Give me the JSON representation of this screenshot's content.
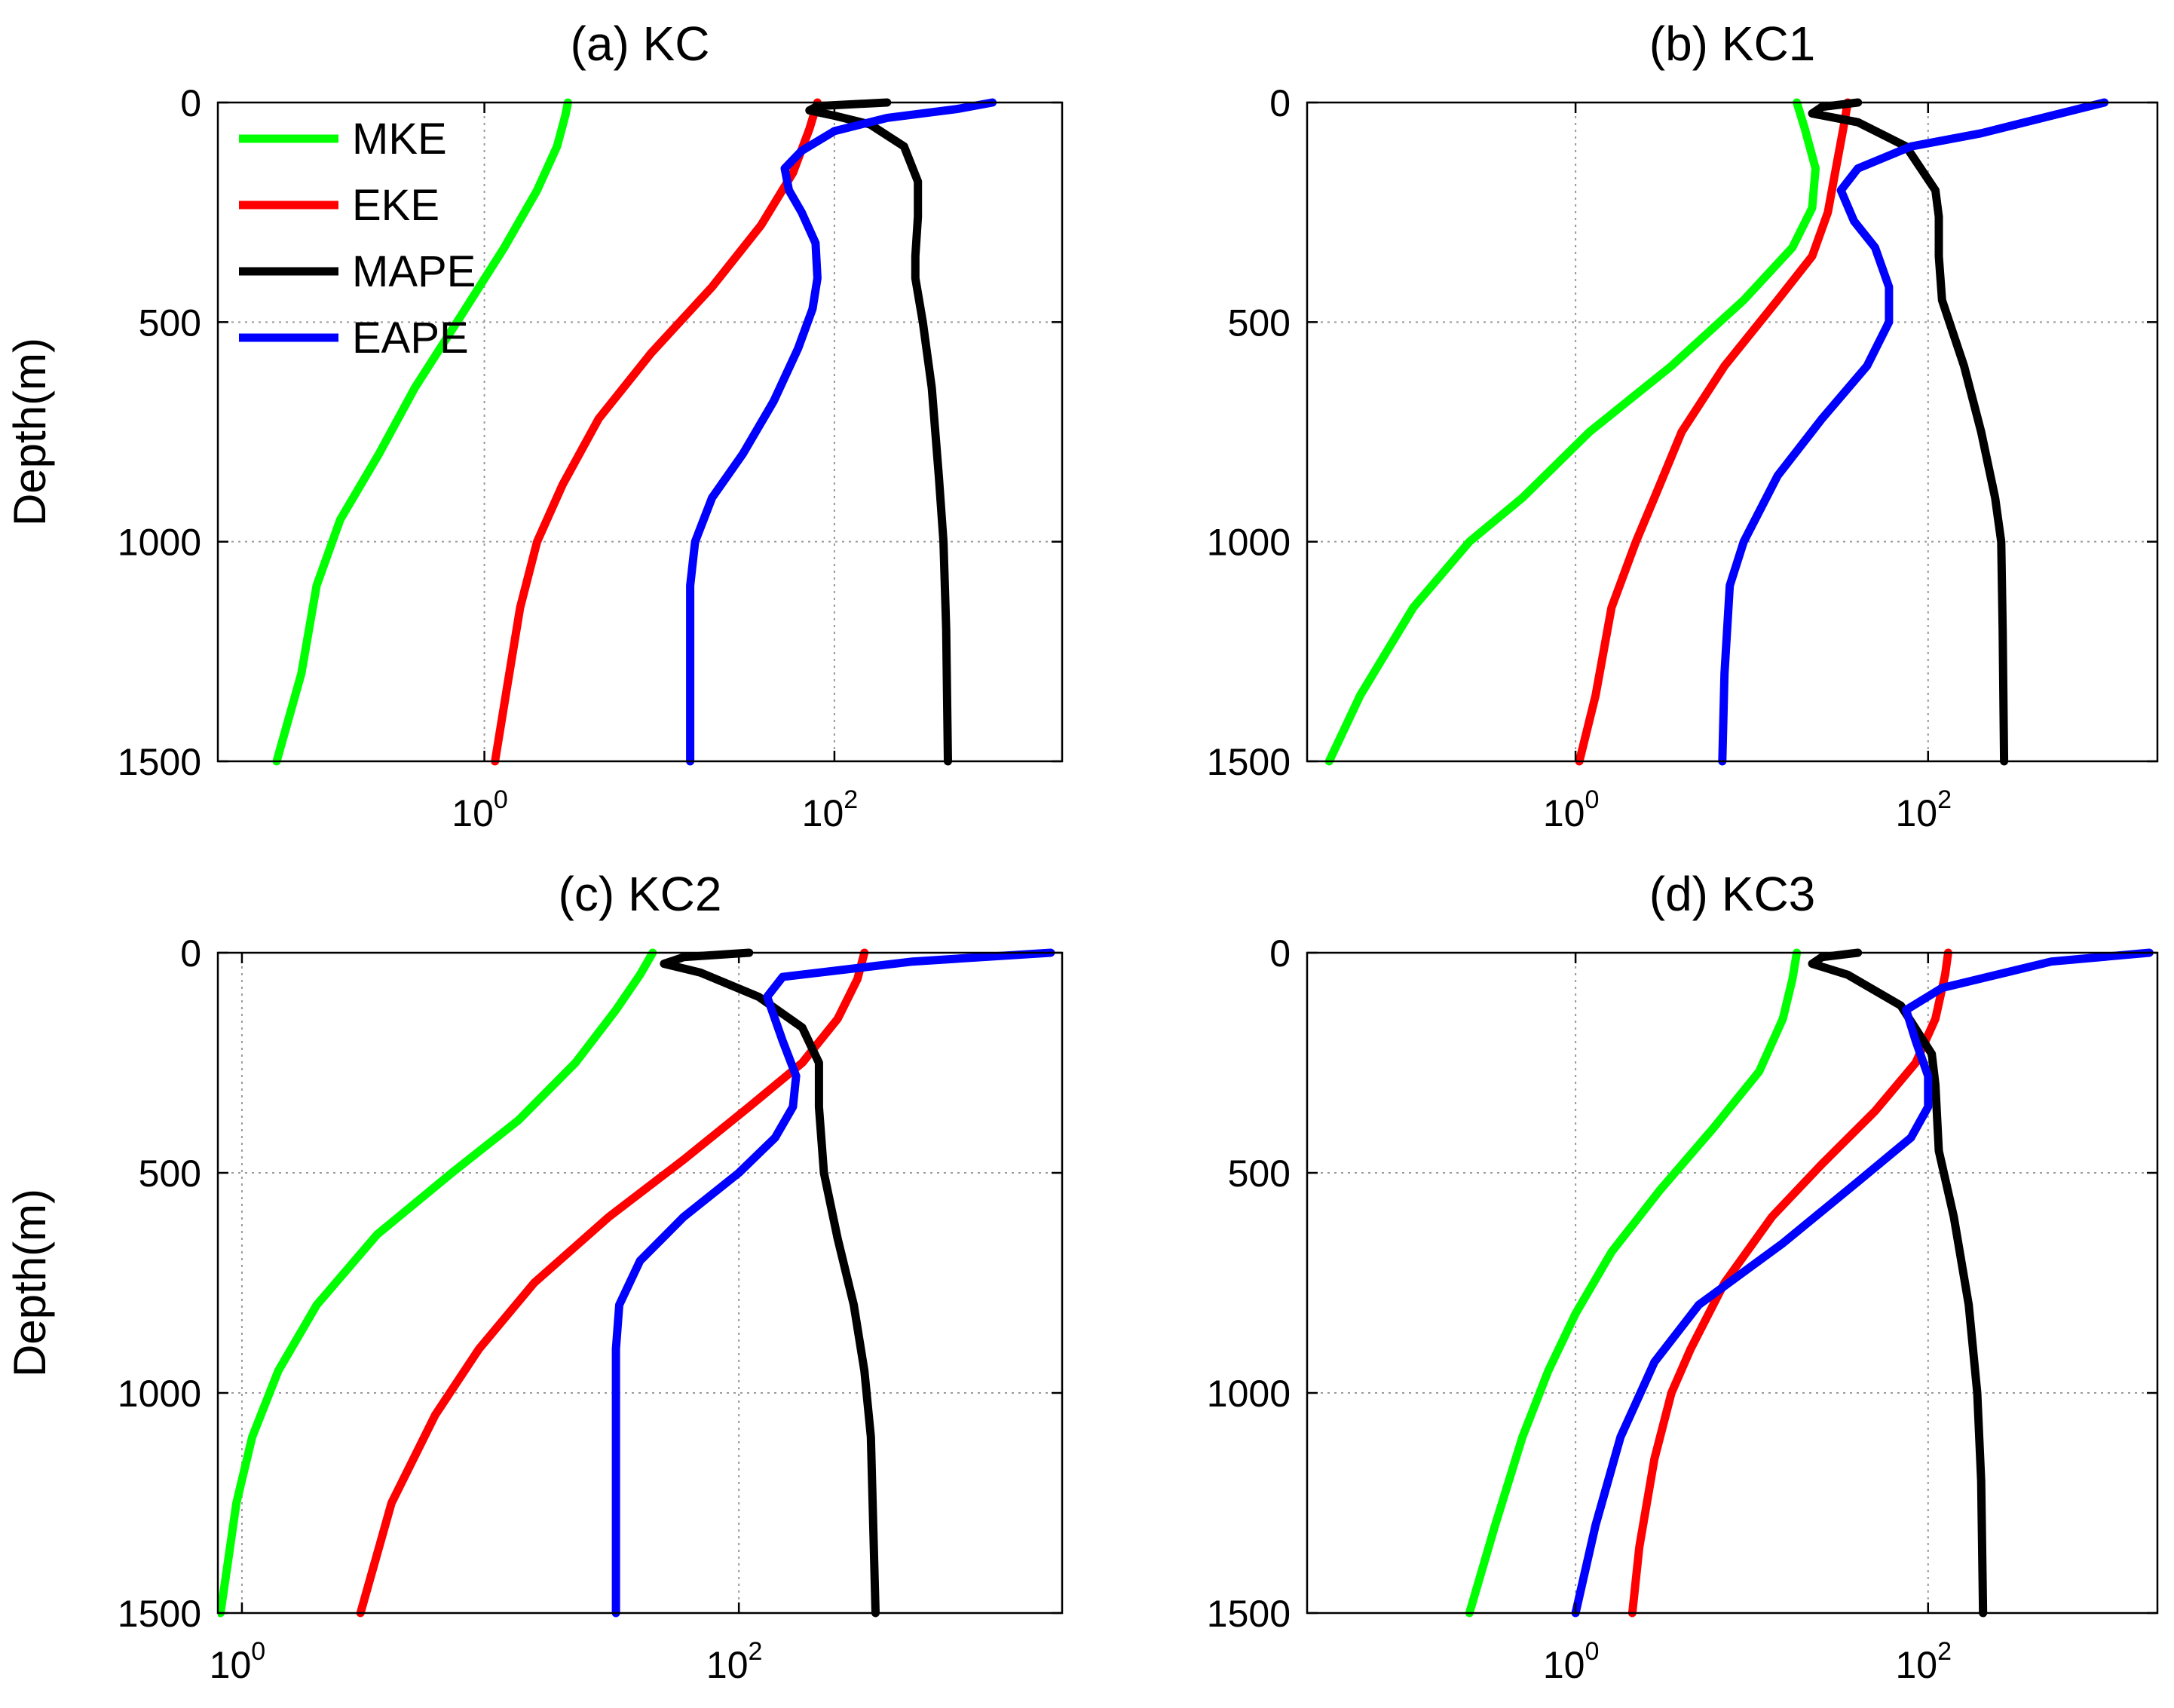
{
  "chart_data": [
    {
      "type": "line",
      "title": "(a) KC",
      "xlabel": "",
      "ylabel": "Depth(m)",
      "xscale": "log",
      "xlim": [
        0.03,
        2000
      ],
      "ylim": [
        1500,
        0
      ],
      "yticks": [
        0,
        500,
        1000,
        1500
      ],
      "ytick_labels": [
        "0",
        "500",
        "1000",
        "1500"
      ],
      "xticks": [
        1,
        100
      ],
      "xtick_labels": [
        {
          "base": "10",
          "exp": "0"
        },
        {
          "base": "10",
          "exp": "2"
        }
      ],
      "grid": true,
      "legend": "top-left",
      "series": [
        {
          "name": "MKE",
          "color": "#00ff00",
          "x": [
            3.0,
            2.9,
            2.6,
            2.0,
            1.3,
            0.75,
            0.4,
            0.25,
            0.15,
            0.11,
            0.09,
            0.065
          ],
          "y": [
            0,
            30,
            100,
            200,
            330,
            480,
            650,
            800,
            950,
            1100,
            1300,
            1500
          ]
        },
        {
          "name": "EKE",
          "color": "#ff0000",
          "x": [
            80,
            72,
            58,
            38,
            20,
            9,
            4.5,
            2.8,
            2.0,
            1.6,
            1.35,
            1.15
          ],
          "y": [
            0,
            60,
            160,
            280,
            420,
            570,
            720,
            870,
            1000,
            1150,
            1330,
            1500
          ]
        },
        {
          "name": "MAPE",
          "color": "#000000",
          "x": [
            200,
            80,
            72,
            100,
            160,
            250,
            300,
            300,
            290,
            290,
            320,
            360,
            395,
            420,
            435,
            445
          ],
          "y": [
            0,
            8,
            18,
            30,
            50,
            100,
            180,
            260,
            350,
            400,
            500,
            650,
            850,
            1000,
            1200,
            1500
          ]
        },
        {
          "name": "EAPE",
          "color": "#0000ff",
          "x": [
            800,
            500,
            200,
            100,
            65,
            52,
            55,
            65,
            78,
            80,
            75,
            62,
            45,
            30,
            20,
            16,
            15,
            15,
            15
          ],
          "y": [
            0,
            15,
            35,
            65,
            110,
            150,
            200,
            250,
            320,
            400,
            470,
            560,
            680,
            800,
            900,
            1000,
            1100,
            1300,
            1500
          ]
        }
      ]
    },
    {
      "type": "line",
      "title": "(b) KC1",
      "xlabel": "",
      "ylabel": "",
      "xscale": "log",
      "xlim": [
        0.03,
        2000
      ],
      "ylim": [
        1500,
        0
      ],
      "yticks": [
        0,
        500,
        1000,
        1500
      ],
      "ytick_labels": [
        "0",
        "500",
        "1000",
        "1500"
      ],
      "xticks": [
        1,
        100
      ],
      "xtick_labels": [
        {
          "base": "10",
          "exp": "0"
        },
        {
          "base": "10",
          "exp": "2"
        }
      ],
      "grid": true,
      "series": [
        {
          "name": "MKE",
          "color": "#00ff00",
          "x": [
            18,
            20,
            23,
            22,
            17,
            9,
            3.5,
            1.2,
            0.5,
            0.25,
            0.12,
            0.06,
            0.04
          ],
          "y": [
            0,
            60,
            150,
            240,
            330,
            450,
            600,
            750,
            900,
            1000,
            1150,
            1350,
            1500
          ]
        },
        {
          "name": "EKE",
          "color": "#ff0000",
          "x": [
            35,
            33,
            30,
            27,
            22,
            14,
            7,
            4,
            2.8,
            2.2,
            1.6,
            1.3,
            1.05
          ],
          "y": [
            0,
            60,
            150,
            250,
            350,
            450,
            600,
            750,
            900,
            1000,
            1150,
            1350,
            1500
          ]
        },
        {
          "name": "MAPE",
          "color": "#000000",
          "x": [
            40,
            25,
            22,
            40,
            75,
            110,
            115,
            115,
            120,
            160,
            200,
            240,
            260,
            265,
            270
          ],
          "y": [
            0,
            10,
            25,
            45,
            100,
            200,
            260,
            350,
            450,
            600,
            750,
            900,
            1000,
            1200,
            1500
          ]
        },
        {
          "name": "EAPE",
          "color": "#0000ff",
          "x": [
            1000,
            500,
            200,
            80,
            40,
            32,
            38,
            50,
            60,
            60,
            45,
            25,
            14,
            9,
            7.5,
            7,
            6.8
          ],
          "y": [
            0,
            30,
            70,
            100,
            150,
            200,
            270,
            330,
            420,
            500,
            600,
            720,
            850,
            1000,
            1100,
            1300,
            1500
          ]
        }
      ]
    },
    {
      "type": "line",
      "title": "(c) KC2",
      "xlabel": "",
      "ylabel": "Depth(m)",
      "xscale": "log",
      "xlim": [
        0.8,
        2000
      ],
      "ylim": [
        1500,
        0
      ],
      "yticks": [
        0,
        500,
        1000,
        1500
      ],
      "ytick_labels": [
        "0",
        "500",
        "1000",
        "1500"
      ],
      "xticks": [
        1,
        100
      ],
      "xtick_labels": [
        {
          "base": "10",
          "exp": "0"
        },
        {
          "base": "10",
          "exp": "2"
        }
      ],
      "grid": true,
      "series": [
        {
          "name": "MKE",
          "color": "#00ff00",
          "x": [
            45,
            40,
            32,
            22,
            13,
            7,
            3.5,
            2.0,
            1.4,
            1.1,
            0.95,
            0.87,
            0.82
          ],
          "y": [
            0,
            50,
            130,
            250,
            380,
            500,
            640,
            800,
            950,
            1100,
            1250,
            1400,
            1500
          ]
        },
        {
          "name": "EKE",
          "color": "#ff0000",
          "x": [
            320,
            300,
            250,
            180,
            110,
            60,
            30,
            15,
            9,
            6,
            4,
            3
          ],
          "y": [
            0,
            60,
            150,
            250,
            350,
            470,
            600,
            750,
            900,
            1050,
            1250,
            1500
          ]
        },
        {
          "name": "MAPE",
          "color": "#000000",
          "x": [
            110,
            60,
            50,
            70,
            120,
            180,
            210,
            210,
            220,
            250,
            290,
            320,
            340,
            355
          ],
          "y": [
            0,
            10,
            25,
            45,
            100,
            170,
            250,
            350,
            500,
            650,
            800,
            950,
            1100,
            1500
          ]
        },
        {
          "name": "EAPE",
          "color": "#0000ff",
          "x": [
            1800,
            500,
            150,
            130,
            150,
            170,
            165,
            140,
            100,
            60,
            40,
            33,
            32,
            32,
            32
          ],
          "y": [
            0,
            20,
            55,
            100,
            200,
            280,
            350,
            420,
            500,
            600,
            700,
            800,
            900,
            1200,
            1500
          ]
        }
      ]
    },
    {
      "type": "line",
      "title": "(d) KC3",
      "xlabel": "",
      "ylabel": "",
      "xscale": "log",
      "xlim": [
        0.03,
        2000
      ],
      "ylim": [
        1500,
        0
      ],
      "yticks": [
        0,
        500,
        1000,
        1500
      ],
      "ytick_labels": [
        "0",
        "500",
        "1000",
        "1500"
      ],
      "xticks": [
        1,
        100
      ],
      "xtick_labels": [
        {
          "base": "10",
          "exp": "0"
        },
        {
          "base": "10",
          "exp": "2"
        }
      ],
      "grid": true,
      "series": [
        {
          "name": "MKE",
          "color": "#00ff00",
          "x": [
            18,
            17,
            15,
            11,
            6,
            3,
            1.6,
            1.0,
            0.7,
            0.5,
            0.35,
            0.25
          ],
          "y": [
            0,
            60,
            150,
            270,
            400,
            540,
            680,
            820,
            950,
            1100,
            1300,
            1500
          ]
        },
        {
          "name": "EKE",
          "color": "#ff0000",
          "x": [
            130,
            125,
            110,
            85,
            50,
            25,
            13,
            7,
            4.5,
            3.5,
            2.8,
            2.3,
            2.1
          ],
          "y": [
            0,
            50,
            150,
            250,
            360,
            480,
            600,
            750,
            900,
            1000,
            1150,
            1350,
            1500
          ]
        },
        {
          "name": "MAPE",
          "color": "#000000",
          "x": [
            40,
            25,
            22,
            35,
            70,
            105,
            110,
            115,
            140,
            170,
            190,
            200,
            205
          ],
          "y": [
            0,
            10,
            25,
            50,
            120,
            230,
            300,
            450,
            600,
            800,
            1000,
            1200,
            1500
          ]
        },
        {
          "name": "EAPE",
          "color": "#0000ff",
          "x": [
            1800,
            500,
            120,
            75,
            85,
            100,
            100,
            80,
            40,
            15,
            5,
            2.8,
            1.8,
            1.3,
            1.0
          ],
          "y": [
            0,
            20,
            80,
            130,
            200,
            280,
            350,
            420,
            520,
            660,
            800,
            930,
            1100,
            1300,
            1500
          ]
        }
      ]
    }
  ]
}
